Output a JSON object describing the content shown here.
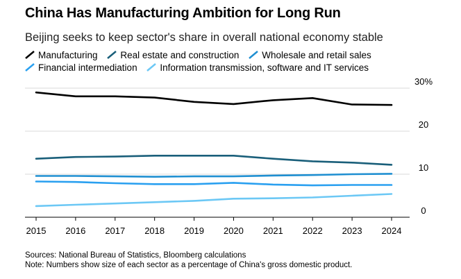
{
  "header": {
    "title": "China Has Manufacturing Ambition for Long Run",
    "subtitle": "Beijing seeks to keep sector's share in overall national economy stable"
  },
  "footer": {
    "sources": "Sources: National Bureau of Statistics, Bloomberg calculations",
    "note": "Note: Numbers show size of each sector as a percentage of China's gross domestic product."
  },
  "chart_data": {
    "type": "line",
    "title": "China Has Manufacturing Ambition for Long Run",
    "subtitle": "Beijing seeks to keep sector's share in overall national economy stable",
    "xlabel": "",
    "ylabel": "",
    "categories": [
      "2015",
      "2016",
      "2017",
      "2018",
      "2019",
      "2020",
      "2021",
      "2022",
      "2023",
      "2024"
    ],
    "ylim": [
      0,
      30
    ],
    "yticks": [
      0,
      10,
      20,
      30
    ],
    "ytick_labels": [
      "0",
      "10",
      "20",
      "30%"
    ],
    "grid": true,
    "legend_placement": "top",
    "series": [
      {
        "name": "Manufacturing",
        "color": "#000000",
        "values": [
          29.0,
          28.1,
          28.1,
          27.8,
          26.8,
          26.3,
          27.2,
          27.7,
          26.2,
          26.1
        ]
      },
      {
        "name": "Real estate and construction",
        "color": "#1a5f7a",
        "values": [
          13.6,
          14.0,
          14.1,
          14.3,
          14.3,
          14.3,
          13.6,
          13.0,
          12.7,
          12.2
        ]
      },
      {
        "name": "Wholesale and retail sales",
        "color": "#1f8fd1",
        "values": [
          9.6,
          9.6,
          9.5,
          9.4,
          9.5,
          9.5,
          9.7,
          9.8,
          10.0,
          10.1
        ]
      },
      {
        "name": "Financial intermediation",
        "color": "#2aa0f0",
        "values": [
          8.3,
          8.2,
          7.9,
          7.7,
          7.7,
          8.0,
          7.6,
          7.4,
          7.5,
          7.5
        ]
      },
      {
        "name": "Information transmission, software and IT services",
        "color": "#6cc8f5",
        "values": [
          2.6,
          2.9,
          3.2,
          3.5,
          3.8,
          4.3,
          4.4,
          4.6,
          5.0,
          5.4
        ]
      }
    ]
  }
}
